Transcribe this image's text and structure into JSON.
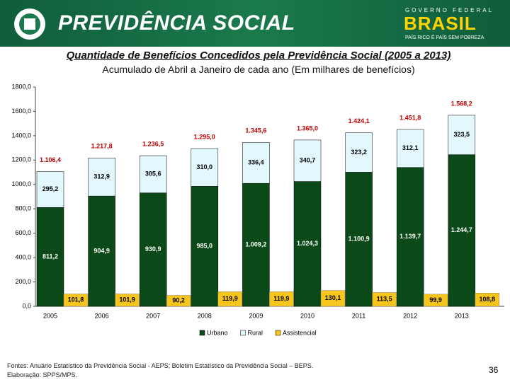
{
  "header": {
    "brand": "PREVIDÊNCIA SOCIAL",
    "gov": "GOVERNO FEDERAL",
    "country": "BRASIL",
    "slogan": "PAÍS RICO É PAÍS SEM POBREZA"
  },
  "chart_data": {
    "type": "stacked-bar",
    "title": "Quantidade de Benefícios Concedidos pela Previdência Social (2005 a 2013)",
    "subtitle": "Acumulado de Abril a Janeiro de cada ano  (Em milhares de benefícios)",
    "categories": [
      "2005",
      "2006",
      "2007",
      "2008",
      "2009",
      "2010",
      "2011",
      "2012",
      "2013"
    ],
    "ylim": [
      0,
      1800
    ],
    "yticks": [
      {
        "value": 0,
        "label": "0,0"
      },
      {
        "value": 200,
        "label": "200,0"
      },
      {
        "value": 400,
        "label": "400,0"
      },
      {
        "value": 600,
        "label": "600,0"
      },
      {
        "value": 800,
        "label": "800,0"
      },
      {
        "value": 1000,
        "label": "1000,0"
      },
      {
        "value": 1200,
        "label": "1200,0"
      },
      {
        "value": 1400,
        "label": "1400,0"
      },
      {
        "value": 1600,
        "label": "1600,0"
      },
      {
        "value": 1800,
        "label": "1800,0"
      }
    ],
    "series": [
      {
        "name": "Urbano",
        "color": "#0b4a18",
        "values": [
          811.2,
          904.9,
          930.9,
          985.0,
          1009.2,
          1024.3,
          1100.9,
          1139.7,
          1244.7
        ],
        "value_labels": [
          "811,2",
          "904,9",
          "930,9",
          "985,0",
          "1.009,2",
          "1.024,3",
          "1.100,9",
          "1.139,7",
          "1.244,7"
        ]
      },
      {
        "name": "Rural",
        "color": "#e3f8fc",
        "values": [
          295.2,
          312.9,
          305.6,
          310.0,
          336.4,
          340.7,
          323.2,
          312.1,
          323.5
        ],
        "value_labels": [
          "295,2",
          "312,9",
          "305,6",
          "310,0",
          "336,4",
          "340,7",
          "323,2",
          "312,1",
          "323,5"
        ]
      },
      {
        "name": "Assistencial",
        "color": "#f7c51c",
        "values": [
          101.8,
          101.9,
          90.2,
          119.9,
          119.9,
          130.1,
          113.5,
          99.9,
          108.8
        ],
        "value_labels": [
          "101,8",
          "101,9",
          "90,2",
          "119,9",
          "119,9",
          "130,1",
          "113,5",
          "99,9",
          "108,8"
        ]
      }
    ],
    "totals": {
      "values": [
        1106.4,
        1217.8,
        1236.5,
        1295.0,
        1345.6,
        1365.0,
        1424.1,
        1451.8,
        1568.2
      ],
      "value_labels": [
        "1.106,4",
        "1.217,8",
        "1.236,5",
        "1.295,0",
        "1.345,6",
        "1.365,0",
        "1.424,1",
        "1.451,8",
        "1.568,2"
      ],
      "color": "#c00000"
    }
  },
  "footer": {
    "sources": "Fontes: Anuário Estatístico da Previdência Social - AEPS; Boletim Estatístico da Previdência Social – BEPS.",
    "credits": "Elaboração: SPPS/MPS.",
    "page": "36"
  }
}
